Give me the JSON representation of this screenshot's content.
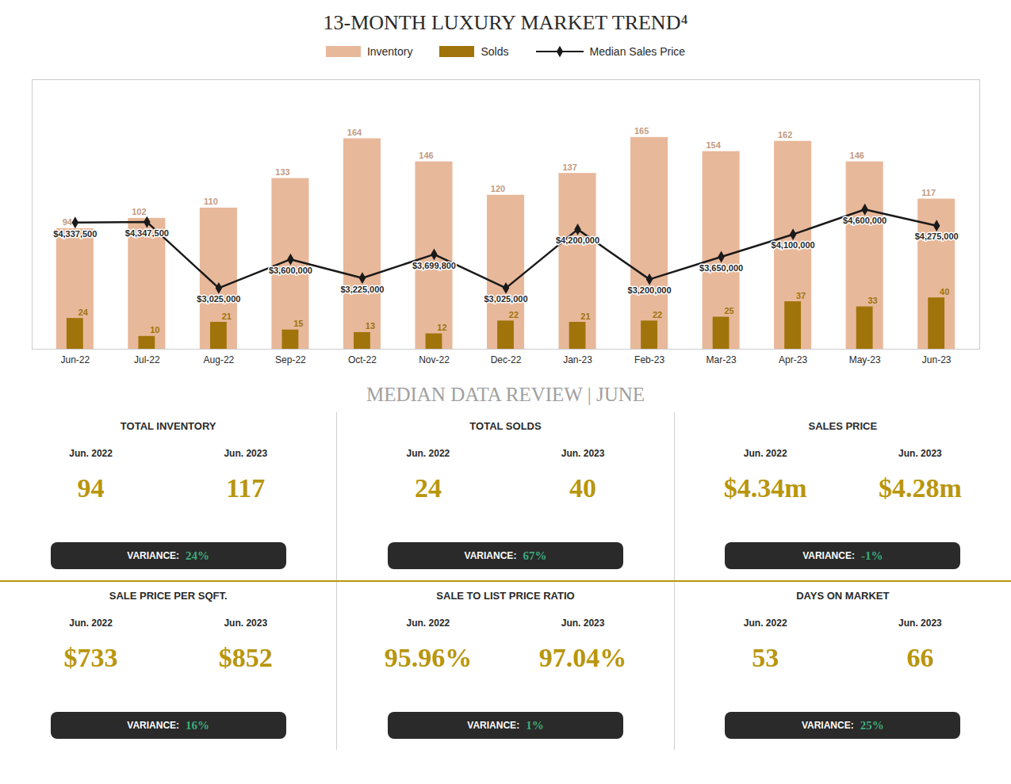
{
  "chart_data": [
    {
      "type": "bar",
      "title": "13-MONTH LUXURY MARKET TREND⁴",
      "categories": [
        "Jun-22",
        "Jul-22",
        "Aug-22",
        "Sep-22",
        "Oct-22",
        "Nov-22",
        "Dec-22",
        "Jan-23",
        "Feb-23",
        "Mar-23",
        "Apr-23",
        "May-23",
        "Jun-23"
      ],
      "series": [
        {
          "name": "Inventory",
          "type": "bar",
          "color": "#E8B89A",
          "values": [
            94,
            102,
            110,
            133,
            164,
            146,
            120,
            137,
            165,
            154,
            162,
            146,
            117
          ]
        },
        {
          "name": "Solds",
          "type": "bar",
          "color": "#A0740A",
          "values": [
            24,
            10,
            21,
            15,
            13,
            12,
            22,
            21,
            22,
            25,
            37,
            33,
            40
          ]
        },
        {
          "name": "Median Sales Price",
          "type": "line",
          "color": "#1A1A1A",
          "marker": "diamond",
          "axis": "y2",
          "values": [
            4337500,
            4347500,
            3025000,
            3600000,
            3225000,
            3699800,
            3025000,
            4200000,
            3200000,
            3650000,
            4100000,
            4600000,
            4275000
          ],
          "value_labels": [
            "$4,337,500",
            "$4,347,500",
            "$3,025,000",
            "$3,600,000",
            "$3,225,000",
            "$3,699,800",
            "$3,025,000",
            "$4,200,000",
            "$3,200,000",
            "$3,650,000",
            "$4,100,000",
            "$4,600,000",
            "$4,275,000"
          ]
        }
      ],
      "ylim": [
        0,
        210
      ],
      "y2lim": [
        1800000,
        7200000
      ],
      "tick_labels": "x",
      "grid": false,
      "legend": "top",
      "data_labels": true
    },
    {
      "type": "table",
      "title": "MEDIAN DATA REVIEW | JUNE",
      "cells": [
        {
          "title": "TOTAL INVENTORY",
          "labels": [
            "Jun. 2022",
            "Jun. 2023"
          ],
          "values": [
            "94",
            "117"
          ],
          "colors": [
            "#B8960C",
            "#B8960C"
          ],
          "variance_label": "VARIANCE:",
          "variance": "24%",
          "variance_color": "#3DAA7A"
        },
        {
          "title": "TOTAL SOLDS",
          "labels": [
            "Jun. 2022",
            "Jun. 2023"
          ],
          "values": [
            "24",
            "40"
          ],
          "colors": [
            "#B8960C",
            "#B8960C"
          ],
          "variance_label": "VARIANCE:",
          "variance": "67%",
          "variance_color": "#3DAA7A"
        },
        {
          "title": "SALES PRICE",
          "labels": [
            "Jun. 2022",
            "Jun. 2023"
          ],
          "values": [
            "$4.34m",
            "$4.28m"
          ],
          "colors": [
            "#B8960C",
            "#B8960C"
          ],
          "variance_label": "VARIANCE:",
          "variance": "-1%",
          "variance_color": "#3DAA7A"
        },
        {
          "title": "SALE PRICE PER SQFT.",
          "labels": [
            "Jun. 2022",
            "Jun. 2023"
          ],
          "values": [
            "$733",
            "$852"
          ],
          "colors": [
            "#B8960C",
            "#B8960C"
          ],
          "variance_label": "VARIANCE:",
          "variance": "16%",
          "variance_color": "#3DAA7A"
        },
        {
          "title": "SALE TO LIST PRICE RATIO",
          "labels": [
            "Jun. 2022",
            "Jun. 2023"
          ],
          "values": [
            "95.96%",
            "97.04%"
          ],
          "colors": [
            "#B8960C",
            "#B8960C"
          ],
          "variance_label": "VARIANCE:",
          "variance": "1%",
          "variance_color": "#3DAA7A"
        },
        {
          "title": "DAYS ON MARKET",
          "labels": [
            "Jun. 2022",
            "Jun. 2023"
          ],
          "values": [
            "53",
            "66"
          ],
          "colors": [
            "#B8960C",
            "#B8960C"
          ],
          "variance_label": "VARIANCE:",
          "variance": "25%",
          "variance_color": "#3DAA7A"
        }
      ]
    }
  ]
}
